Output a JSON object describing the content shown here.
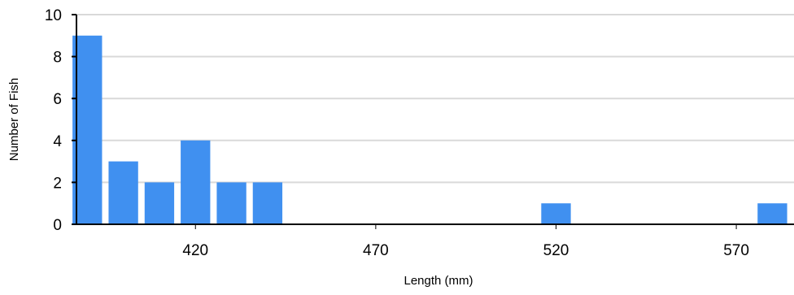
{
  "chart_data": {
    "type": "bar",
    "xlabel": "Length (mm)",
    "ylabel": "Number of Fish",
    "x_axis_type": "continuous",
    "bin_width": 10,
    "bins": [
      {
        "center": 390,
        "value": 9
      },
      {
        "center": 400,
        "value": 3
      },
      {
        "center": 410,
        "value": 2
      },
      {
        "center": 420,
        "value": 4
      },
      {
        "center": 430,
        "value": 2
      },
      {
        "center": 440,
        "value": 2
      },
      {
        "center": 520,
        "value": 1
      },
      {
        "center": 580,
        "value": 1
      }
    ],
    "x_ticks": [
      "420",
      "470",
      "520",
      "570"
    ],
    "y_ticks": [
      "0",
      "2",
      "4",
      "6",
      "8",
      "10"
    ],
    "ylim": [
      0,
      10
    ],
    "xlim": [
      387,
      586
    ],
    "grid": "horizontal",
    "legend": "none",
    "bar_color": "#4090F0",
    "grid_color": "#D9D9D9",
    "axis_color": "#000000"
  }
}
